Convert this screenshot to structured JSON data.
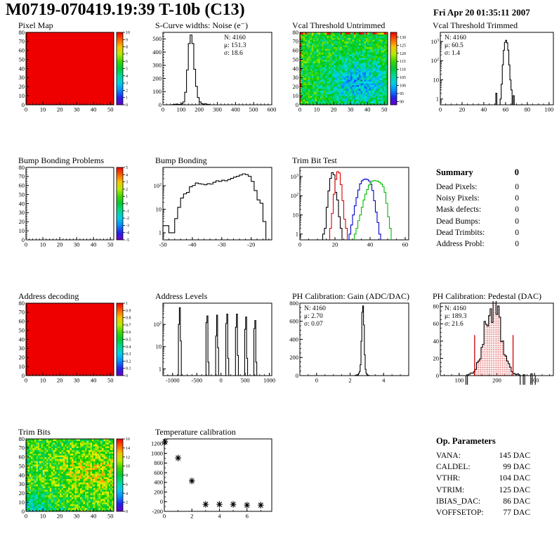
{
  "page": {
    "title": "M0719-070419.19:39 T-10b (C13)",
    "date": "Fri Apr 20 01:35:11 2007"
  },
  "summary": {
    "title": "Summary",
    "value": "0",
    "rows": [
      {
        "label": "Dead Pixels:",
        "value": "0"
      },
      {
        "label": "Noisy Pixels:",
        "value": "0"
      },
      {
        "label": "Mask defects:",
        "value": "0"
      },
      {
        "label": "Dead Bumps:",
        "value": "0"
      },
      {
        "label": "Dead Trimbits:",
        "value": "0"
      },
      {
        "label": "Address Probl:",
        "value": "0"
      }
    ]
  },
  "op_parameters": {
    "title": "Op. Parameters",
    "rows": [
      {
        "label": "VANA:",
        "value": "145 DAC"
      },
      {
        "label": "CALDEL:",
        "value": "99 DAC"
      },
      {
        "label": "VTHR:",
        "value": "104 DAC"
      },
      {
        "label": "VTRIM:",
        "value": "125 DAC"
      },
      {
        "label": "IBIAS_DAC:",
        "value": "86 DAC"
      },
      {
        "label": "VOFFSETOP:",
        "value": "77 DAC"
      }
    ]
  },
  "chart_data": [
    {
      "title": "Pixel Map",
      "type": "heatmap",
      "xlim": [
        0,
        52
      ],
      "xticks": [
        0,
        10,
        20,
        30,
        40,
        50
      ],
      "xminor": 2,
      "ylim": [
        0,
        80
      ],
      "yticks": [
        0,
        10,
        20,
        30,
        40,
        50,
        60,
        70,
        80
      ],
      "yminor": 2,
      "zlim": [
        0,
        10
      ],
      "colorbar_ticks": [
        0,
        1,
        2,
        3,
        4,
        5,
        6,
        7,
        8,
        9,
        10
      ],
      "fill": "solid",
      "value": 10
    },
    {
      "title": "S-Curve widths: Noise (e⁻)",
      "type": "histogram",
      "xlim": [
        0,
        600
      ],
      "xticks": [
        0,
        100,
        200,
        300,
        400,
        500,
        600
      ],
      "xminor": 20,
      "ylim": [
        0,
        550
      ],
      "yticks": [
        0,
        100,
        200,
        300,
        400,
        500
      ],
      "yminor": 20,
      "bin_width": 10,
      "bins": [
        [
          50,
          2
        ],
        [
          60,
          3
        ],
        [
          70,
          5
        ],
        [
          80,
          4
        ],
        [
          90,
          3
        ],
        [
          100,
          7
        ],
        [
          110,
          22
        ],
        [
          120,
          95
        ],
        [
          130,
          265
        ],
        [
          140,
          465
        ],
        [
          150,
          530
        ],
        [
          160,
          465
        ],
        [
          170,
          270
        ],
        [
          180,
          140
        ],
        [
          190,
          55
        ],
        [
          200,
          22
        ],
        [
          210,
          9
        ],
        [
          220,
          5
        ],
        [
          230,
          8
        ],
        [
          240,
          4
        ],
        [
          250,
          2
        ]
      ],
      "stats": {
        "corner": "tr",
        "lines": [
          {
            "text": "N: 4160"
          },
          {
            "text": "μ: 151.3"
          },
          {
            "text": "σ: 18.6"
          }
        ]
      }
    },
    {
      "title": "Vcal Threshold Untrimmed",
      "type": "heatmap",
      "xlim": [
        0,
        52
      ],
      "xticks": [
        0,
        10,
        20,
        30,
        40,
        50
      ],
      "xminor": 2,
      "ylim": [
        0,
        80
      ],
      "yticks": [
        0,
        10,
        20,
        30,
        40,
        50,
        60,
        70,
        80
      ],
      "yminor": 2,
      "zlim": [
        88,
        133
      ],
      "colorbar_ticks": [
        90,
        95,
        100,
        105,
        110,
        115,
        120,
        125,
        130
      ],
      "fill": "noise",
      "noise": {
        "base": 112,
        "amp": 6.5,
        "blobs": [
          {
            "x": 35,
            "y": 24,
            "rx": 13,
            "ry": 18,
            "dv": -12
          }
        ],
        "hot_top": true,
        "hot_left": true
      }
    },
    {
      "title": "Vcal Threshold Trimmed",
      "type": "histogram",
      "xlim": [
        0,
        104
      ],
      "xticks": [
        0,
        20,
        40,
        60,
        80,
        100
      ],
      "xminor": 5,
      "ylog": [
        0.5,
        3000
      ],
      "bin_width": 1,
      "bins": [
        [
          51,
          2
        ],
        [
          55,
          1
        ],
        [
          56,
          6
        ],
        [
          57,
          60
        ],
        [
          58,
          350
        ],
        [
          59,
          900
        ],
        [
          60,
          1150
        ],
        [
          61,
          850
        ],
        [
          62,
          350
        ],
        [
          63,
          60
        ],
        [
          64,
          10
        ],
        [
          65,
          3
        ],
        [
          67,
          1.5
        ]
      ],
      "stats": {
        "corner": "tl",
        "lines": [
          {
            "text": "N: 4160"
          },
          {
            "text": "μ: 60.5"
          },
          {
            "text": "σ:  1.4"
          }
        ]
      }
    },
    {
      "title": "Bump Bonding Problems",
      "type": "heatmap",
      "xlim": [
        0,
        52
      ],
      "xticks": [
        0,
        10,
        20,
        30,
        40,
        50
      ],
      "xminor": 2,
      "ylim": [
        0,
        80
      ],
      "yticks": [
        0,
        10,
        20,
        30,
        40,
        50,
        60,
        70,
        80
      ],
      "yminor": 2,
      "zlim": [
        -5,
        5
      ],
      "colorbar_ticks": [
        -5,
        -4,
        -3,
        -2,
        -1,
        0,
        1,
        2,
        3,
        4,
        5
      ],
      "fill": "empty"
    },
    {
      "title": "Bump Bonding",
      "type": "histogram",
      "xlim": [
        -50,
        -13
      ],
      "xticks": [
        -50,
        -40,
        -30,
        -20
      ],
      "xminor": 2,
      "ylog": [
        0.5,
        600
      ],
      "bin_width": 1,
      "bins": [
        [
          -50,
          2
        ],
        [
          -49,
          2
        ],
        [
          -48,
          1
        ],
        [
          -47,
          1
        ],
        [
          -46,
          4
        ],
        [
          -45,
          12
        ],
        [
          -44,
          30
        ],
        [
          -43,
          45
        ],
        [
          -42,
          52
        ],
        [
          -41,
          90
        ],
        [
          -40,
          102
        ],
        [
          -39,
          130
        ],
        [
          -38,
          122
        ],
        [
          -37,
          116
        ],
        [
          -36,
          110
        ],
        [
          -35,
          122
        ],
        [
          -34,
          117
        ],
        [
          -33,
          140
        ],
        [
          -32,
          162
        ],
        [
          -31,
          152
        ],
        [
          -30,
          172
        ],
        [
          -29,
          162
        ],
        [
          -28,
          182
        ],
        [
          -27,
          205
        ],
        [
          -26,
          232
        ],
        [
          -25,
          252
        ],
        [
          -24,
          285
        ],
        [
          -23,
          320
        ],
        [
          -22,
          298
        ],
        [
          -21,
          250
        ],
        [
          -20,
          152
        ],
        [
          -19,
          62
        ],
        [
          -18,
          25
        ],
        [
          -17,
          18
        ],
        [
          -16,
          3
        ]
      ]
    },
    {
      "title": "Trim Bit Test",
      "type": "histogram-multi",
      "xlim": [
        0,
        62
      ],
      "xticks": [
        0,
        20,
        40,
        60
      ],
      "xminor": 5,
      "ylog": [
        0.5,
        3000
      ],
      "bin_width": 1,
      "series": [
        {
          "name": "black",
          "color": "#000000",
          "bins": [
            [
              13,
              1
            ],
            [
              14,
              2
            ],
            [
              15,
              25
            ],
            [
              16,
              180
            ],
            [
              17,
              800
            ],
            [
              18,
              1600
            ],
            [
              19,
              1250
            ],
            [
              20,
              150
            ],
            [
              21,
              60
            ],
            [
              22,
              8
            ],
            [
              23,
              2
            ]
          ]
        },
        {
          "name": "red",
          "color": "#dd0000",
          "bins": [
            [
              17,
              2
            ],
            [
              18,
              12
            ],
            [
              19,
              120
            ],
            [
              20,
              700
            ],
            [
              21,
              1800
            ],
            [
              22,
              1550
            ],
            [
              23,
              380
            ],
            [
              24,
              55
            ],
            [
              25,
              6
            ],
            [
              26,
              2
            ]
          ]
        },
        {
          "name": "blue",
          "color": "#0000cc",
          "bins": [
            [
              28,
              1
            ],
            [
              29,
              3
            ],
            [
              30,
              10
            ],
            [
              31,
              30
            ],
            [
              32,
              80
            ],
            [
              33,
              200
            ],
            [
              34,
              420
            ],
            [
              35,
              600
            ],
            [
              36,
              700
            ],
            [
              37,
              740
            ],
            [
              38,
              700
            ],
            [
              39,
              590
            ],
            [
              40,
              400
            ],
            [
              41,
              190
            ],
            [
              42,
              55
            ],
            [
              43,
              14
            ],
            [
              44,
              4
            ],
            [
              45,
              1
            ]
          ]
        },
        {
          "name": "green",
          "color": "#00bb00",
          "bins": [
            [
              31,
              1
            ],
            [
              32,
              2
            ],
            [
              33,
              5
            ],
            [
              34,
              10
            ],
            [
              35,
              25
            ],
            [
              36,
              60
            ],
            [
              37,
              120
            ],
            [
              38,
              210
            ],
            [
              39,
              360
            ],
            [
              40,
              500
            ],
            [
              41,
              590
            ],
            [
              42,
              620
            ],
            [
              43,
              600
            ],
            [
              44,
              575
            ],
            [
              45,
              500
            ],
            [
              46,
              410
            ],
            [
              47,
              300
            ],
            [
              48,
              150
            ],
            [
              49,
              40
            ],
            [
              50,
              8
            ],
            [
              51,
              2
            ]
          ]
        }
      ]
    },
    {
      "title": "Address decoding",
      "type": "heatmap",
      "xlim": [
        0,
        52
      ],
      "xticks": [
        0,
        10,
        20,
        30,
        40,
        50
      ],
      "xminor": 2,
      "ylim": [
        0,
        80
      ],
      "yticks": [
        0,
        10,
        20,
        30,
        40,
        50,
        60,
        70,
        80
      ],
      "yminor": 2,
      "zlim": [
        0,
        1
      ],
      "colorbar_ticks": [
        0,
        0.1,
        0.2,
        0.3,
        0.4,
        0.5,
        0.6,
        0.7,
        0.8,
        0.9,
        1
      ],
      "fill": "solid",
      "value": 1
    },
    {
      "title": "Address Levels",
      "type": "histogram",
      "xlim": [
        -1200,
        1050
      ],
      "xticks": [
        -1000,
        -500,
        0,
        500,
        1000
      ],
      "xminor": 100,
      "ylog": [
        0.5,
        900
      ],
      "bin_width": 20,
      "bins": [
        [
          -880,
          100
        ],
        [
          -860,
          560
        ],
        [
          -840,
          18
        ],
        [
          -310,
          120
        ],
        [
          -290,
          240
        ],
        [
          -270,
          2
        ],
        [
          -110,
          30
        ],
        [
          -90,
          260
        ],
        [
          -70,
          9
        ],
        [
          100,
          110
        ],
        [
          120,
          290
        ],
        [
          140,
          3
        ],
        [
          300,
          75
        ],
        [
          320,
          290
        ],
        [
          340,
          4
        ],
        [
          490,
          60
        ],
        [
          510,
          215
        ],
        [
          530,
          3
        ],
        [
          680,
          65
        ],
        [
          700,
          150
        ],
        [
          720,
          2
        ]
      ]
    },
    {
      "title": "PH Calibration: Gain (ADC/DAC)",
      "type": "histogram",
      "xlim": [
        -1,
        5.5
      ],
      "xticks": [
        0,
        2,
        4
      ],
      "xminor": 0.5,
      "ylim": [
        0,
        800
      ],
      "yticks": [
        0,
        200,
        400,
        600,
        800
      ],
      "yminor": 50,
      "bin_width": 0.05,
      "bins": [
        [
          2.3,
          3
        ],
        [
          2.35,
          5
        ],
        [
          2.4,
          8
        ],
        [
          2.45,
          12
        ],
        [
          2.5,
          25
        ],
        [
          2.55,
          45
        ],
        [
          2.6,
          120
        ],
        [
          2.65,
          380
        ],
        [
          2.7,
          700
        ],
        [
          2.75,
          770
        ],
        [
          2.8,
          560
        ],
        [
          2.85,
          230
        ],
        [
          2.9,
          70
        ],
        [
          2.95,
          25
        ],
        [
          3.0,
          10
        ],
        [
          3.05,
          4
        ],
        [
          3.1,
          2
        ]
      ],
      "stats": {
        "corner": "tl",
        "lines": [
          {
            "text": "N: 4160"
          },
          {
            "text": "μ: 2.70"
          },
          {
            "text": "σ: 0.07"
          }
        ]
      }
    },
    {
      "title": "PH Calibration: Pedestal (DAC)",
      "type": "histogram",
      "xlim": [
        50,
        350
      ],
      "xticks": [
        100,
        200,
        300
      ],
      "xminor": 20,
      "ylim": [
        0,
        84
      ],
      "yticks": [
        0,
        20,
        40,
        60,
        80
      ],
      "yminor": 5,
      "bin_width": 4,
      "dist": {
        "mu": 189.3,
        "sigma": 21.6,
        "peak": 80,
        "range": [
          118,
          302
        ]
      },
      "outliers": [
        [
          252,
          2
        ],
        [
          268,
          1
        ],
        [
          288,
          2
        ]
      ],
      "fill_dots": true,
      "fill_color": "#cc0000",
      "vlines": [
        141,
        243
      ],
      "vline_top": 47,
      "stats": {
        "corner": "tl",
        "lines": [
          {
            "text": "N: 4160",
            "color": "#000000"
          },
          {
            "text": "μ: 189.3",
            "color": "#cc0000"
          },
          {
            "text": "σ: 21.6",
            "color": "#cc0000"
          }
        ]
      }
    },
    {
      "title": "Trim Bits",
      "type": "heatmap",
      "xlim": [
        0,
        52
      ],
      "xticks": [
        0,
        10,
        20,
        30,
        40,
        50
      ],
      "xminor": 2,
      "ylim": [
        0,
        80
      ],
      "yticks": [
        0,
        10,
        20,
        30,
        40,
        50,
        60,
        70,
        80
      ],
      "yminor": 2,
      "zlim": [
        0,
        16
      ],
      "colorbar_ticks": [
        0,
        2,
        4,
        6,
        8,
        10,
        12,
        14,
        16
      ],
      "fill": "noise",
      "noise": {
        "base": 9,
        "amp": 2.8,
        "blobs": [
          {
            "x": 40,
            "y": 45,
            "rx": 14,
            "ry": 18,
            "dv": 2.2
          },
          {
            "x": 5,
            "y": 5,
            "rx": 9,
            "ry": 9,
            "dv": -2.5
          }
        ]
      }
    },
    {
      "title": "Temperature calibration",
      "type": "scatter",
      "xlim": [
        0,
        7.8
      ],
      "xticks": [
        0,
        2,
        4,
        6
      ],
      "xminor": 1,
      "ylim": [
        -200,
        1300
      ],
      "yticks": [
        -200,
        0,
        200,
        400,
        600,
        800,
        1000,
        1200
      ],
      "yminor": 100,
      "marker": "star",
      "points": [
        [
          0.05,
          1240
        ],
        [
          1,
          905
        ],
        [
          2,
          430
        ],
        [
          3,
          -55
        ],
        [
          4,
          -55
        ],
        [
          5,
          -55
        ],
        [
          6,
          -72
        ],
        [
          7,
          -72
        ]
      ]
    }
  ]
}
